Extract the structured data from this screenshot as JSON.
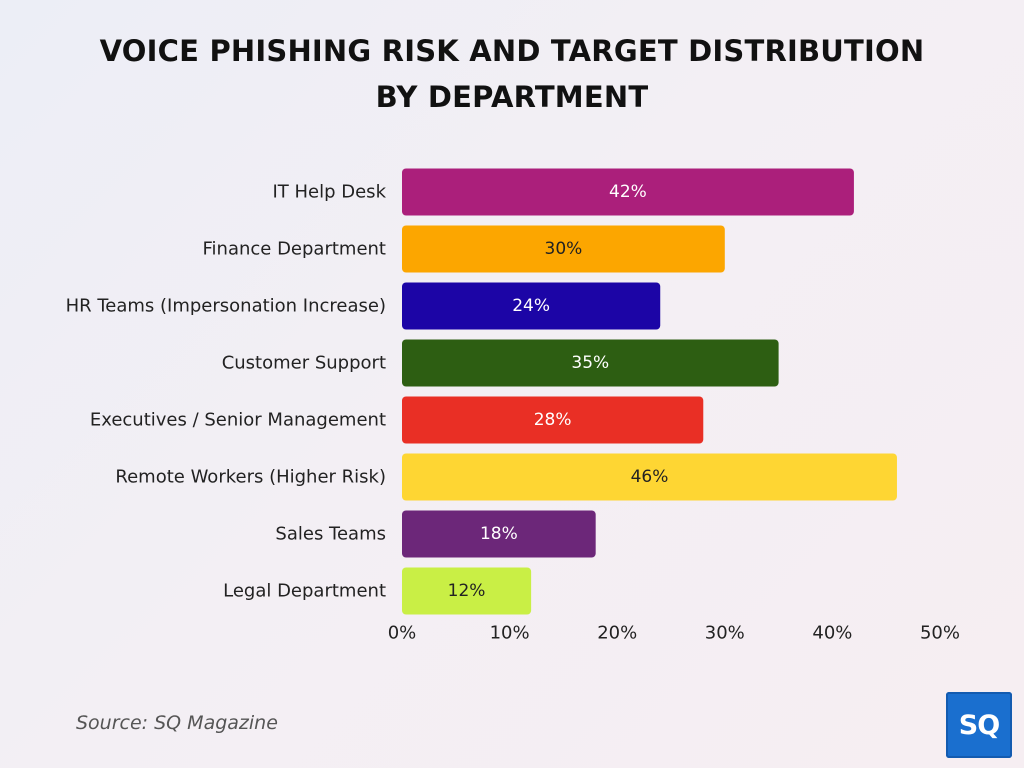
{
  "title_line1": "VOICE PHISHING RISK AND TARGET DISTRIBUTION",
  "title_line2": "BY DEPARTMENT",
  "source": "Source: SQ Magazine",
  "logo_text": "SQ",
  "colors": {
    "background": "#f1eff5",
    "logo_bg": "#1a6fcf"
  },
  "chart_data": {
    "type": "bar",
    "orientation": "horizontal",
    "categories": [
      "IT Help Desk",
      "Finance Department",
      "HR Teams (Impersonation Increase)",
      "Customer Support",
      "Executives / Senior Management",
      "Remote Workers (Higher Risk)",
      "Sales Teams",
      "Legal Department"
    ],
    "values": [
      42,
      30,
      24,
      35,
      28,
      46,
      18,
      12
    ],
    "value_labels": [
      "42%",
      "30%",
      "24%",
      "35%",
      "28%",
      "46%",
      "18%",
      "12%"
    ],
    "bar_colors": [
      "#ab1f7b",
      "#fca600",
      "#1c05a6",
      "#2d5e12",
      "#e92f25",
      "#fed633",
      "#6c2779",
      "#c9ef45"
    ],
    "label_colors": [
      "#ffffff",
      "#222222",
      "#ffffff",
      "#ffffff",
      "#ffffff",
      "#222222",
      "#ffffff",
      "#222222"
    ],
    "xlim": [
      0,
      50
    ],
    "xticks": [
      0,
      10,
      20,
      30,
      40,
      50
    ],
    "xtick_labels": [
      "0%",
      "10%",
      "20%",
      "30%",
      "40%",
      "50%"
    ],
    "title": "VOICE PHISHING RISK AND TARGET DISTRIBUTION BY DEPARTMENT",
    "xlabel": "",
    "ylabel": "",
    "grid": false,
    "legend": false
  }
}
